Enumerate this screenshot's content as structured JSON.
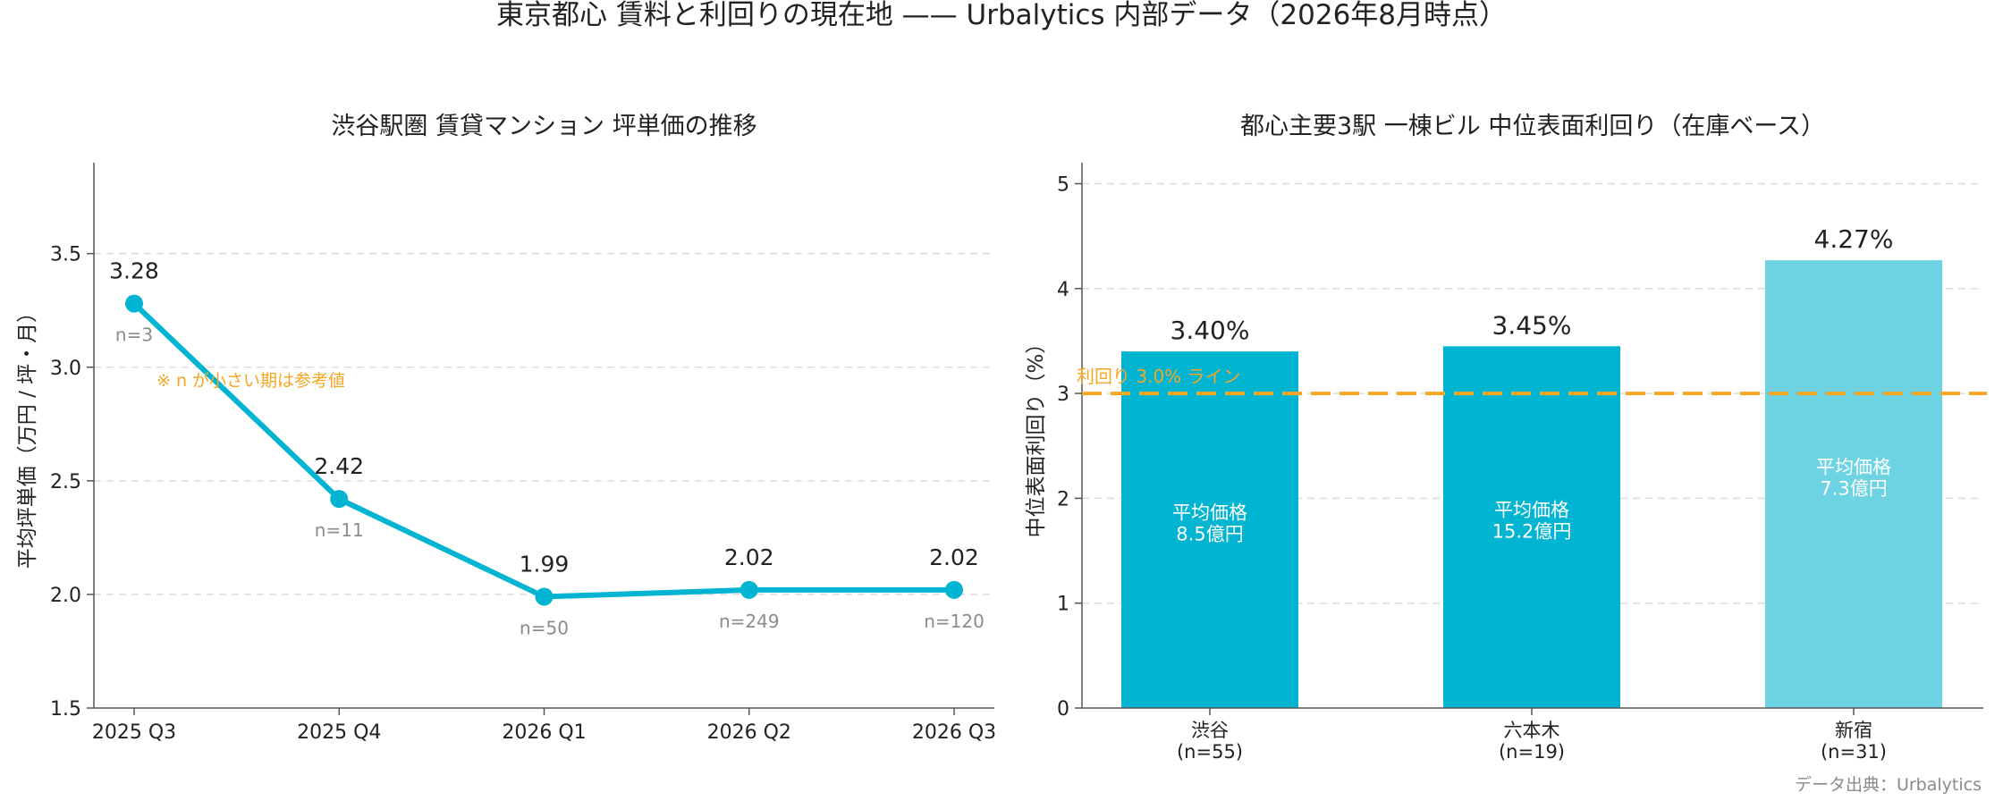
{
  "page": {
    "title": "東京都心 賃料と利回りの現在地 —— Urbalytics 内部データ（2026年8月時点）",
    "source": "データ出典：Urbalytics"
  },
  "chart_data": [
    {
      "type": "line",
      "title": "渋谷駅圏 賃貸マンション 坪単価の推移",
      "ylabel": "平均坪単価（万円 / 坪・月）",
      "xlabel": "",
      "categories": [
        "2025 Q3",
        "2025 Q4",
        "2026 Q1",
        "2026 Q2",
        "2026 Q3"
      ],
      "values": [
        3.28,
        2.42,
        1.99,
        2.02,
        2.02
      ],
      "value_labels": [
        "3.28",
        "2.42",
        "1.99",
        "2.02",
        "2.02"
      ],
      "sample_sizes": [
        "n=3",
        "n=11",
        "n=50",
        "n=249",
        "n=120"
      ],
      "ylim": [
        1.5,
        3.9
      ],
      "yticks": [
        1.5,
        2.0,
        2.5,
        3.0,
        3.5
      ],
      "ytick_labels": [
        "1.5",
        "2.0",
        "2.5",
        "3.0",
        "3.5"
      ],
      "grid": "horizontal",
      "annotation": "※ n が小さい期は参考値",
      "colors": {
        "line": "#00b4d2",
        "annotation": "#f5a623",
        "sample": "#8c8c8c"
      }
    },
    {
      "type": "bar",
      "title": "都心主要3駅 一棟ビル 中位表面利回り（在庫ベース）",
      "ylabel": "中位表面利回り（%）",
      "xlabel": "",
      "categories": [
        "渋谷",
        "六本木",
        "新宿"
      ],
      "category_counts": [
        "(n=55)",
        "(n=19)",
        "(n=31)"
      ],
      "values": [
        3.4,
        3.45,
        4.27
      ],
      "value_labels": [
        "3.40%",
        "3.45%",
        "4.27%"
      ],
      "inner_label_title": "平均価格",
      "inner_labels": [
        "8.5億円",
        "15.2億円",
        "7.3億円"
      ],
      "ylim": [
        0,
        5.2
      ],
      "yticks": [
        0,
        1,
        2,
        3,
        4,
        5
      ],
      "ytick_labels": [
        "0",
        "1",
        "2",
        "3",
        "4",
        "5"
      ],
      "grid": "horizontal",
      "reference_line": {
        "value": 3.0,
        "label": "利回り 3.0% ライン"
      },
      "colors": {
        "bars": [
          "#00b4d2",
          "#00b4d2",
          "#6dd3e2"
        ],
        "reference": "#f5a623"
      }
    }
  ]
}
